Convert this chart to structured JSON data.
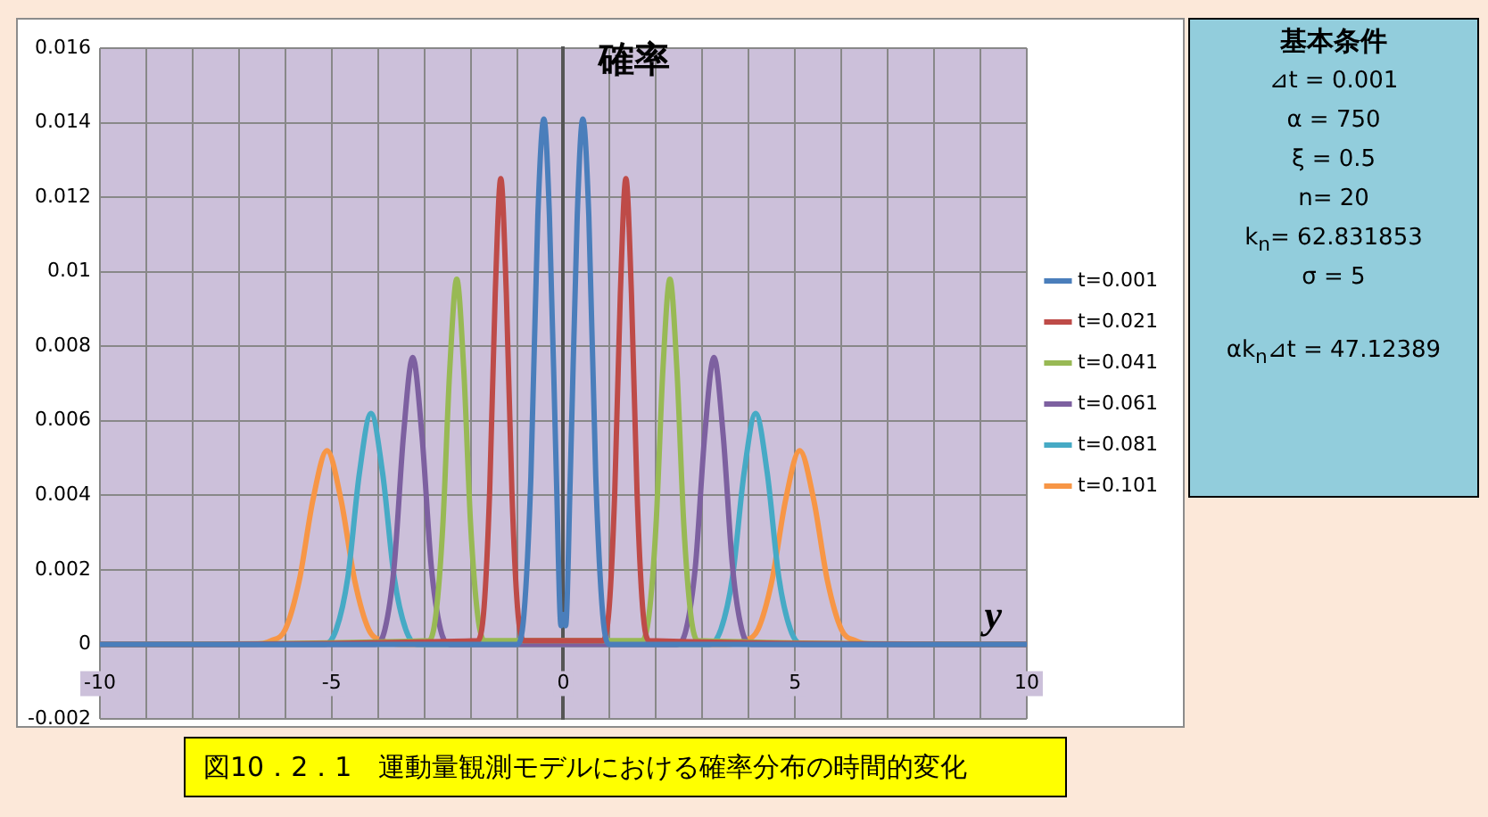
{
  "chart_data": {
    "type": "line",
    "title": "図10．2．1　運動量観測モデルにおける確率分布の時間的変化",
    "xlabel": "y",
    "ylabel": "確率",
    "annotations": [
      "基本条件",
      "⊿t = 0.001",
      "α = 750",
      "ξ = 0.5",
      "n= 20",
      "k$_{n}$= 62.831853",
      "σ = 5",
      "αk$_{n}$⊿t = 47.12389"
    ],
    "xlim": [
      -10,
      10
    ],
    "xticks": [
      -10,
      {
        "value": -9,
        "label": null
      },
      {
        "value": -8,
        "label": null
      },
      {
        "value": -7,
        "label": null
      },
      {
        "value": -6,
        "label": null
      },
      -5,
      {
        "value": -4,
        "label": null
      },
      {
        "value": -3,
        "label": null
      },
      {
        "value": -2,
        "label": null
      },
      {
        "value": -1,
        "label": null
      },
      0,
      {
        "value": 1,
        "label": null
      },
      {
        "value": 2,
        "label": null
      },
      {
        "value": 3,
        "label": null
      },
      {
        "value": 4,
        "label": null
      },
      5,
      {
        "value": 6,
        "label": null
      },
      {
        "value": 7,
        "label": null
      },
      {
        "value": 8,
        "label": null
      },
      {
        "value": 9,
        "label": null
      },
      10
    ],
    "ylim": [
      -0.002,
      0.016
    ],
    "yticks": [
      -0.002,
      0,
      0.002,
      0.004,
      0.006,
      0.008,
      0.01,
      0.012,
      0.014,
      0.016
    ],
    "grid": true,
    "legend": "right",
    "marker": "none",
    "line_style": "solid",
    "series": [
      {
        "name": "t=0.001",
        "color": "#4a7ebb",
        "x": [
          -10,
          -1.0,
          -0.85,
          -0.7,
          -0.55,
          -0.42,
          -0.3,
          -0.15,
          -0.05,
          0,
          0.05,
          0.15,
          0.3,
          0.42,
          0.55,
          0.7,
          0.85,
          1.0,
          10
        ],
        "values": [
          0,
          0,
          0.0008,
          0.0045,
          0.0115,
          0.0141,
          0.0115,
          0.0045,
          0.0005,
          0.0008,
          0.0005,
          0.0045,
          0.0115,
          0.0141,
          0.0115,
          0.0045,
          0.0008,
          0,
          0
        ]
      },
      {
        "name": "t=0.021",
        "color": "#be4b48",
        "x": [
          -10,
          -1.85,
          -1.71,
          -1.59,
          -1.47,
          -1.35,
          -1.23,
          -1.11,
          -0.99,
          -0.85,
          0.85,
          0.99,
          1.11,
          1.23,
          1.35,
          1.47,
          1.59,
          1.71,
          1.85,
          10
        ],
        "values": [
          0,
          0.0001,
          0.001,
          0.0041,
          0.0094,
          0.0125,
          0.0094,
          0.0041,
          0.001,
          0.0001,
          0.0001,
          0.001,
          0.0041,
          0.0094,
          0.0125,
          0.0094,
          0.0041,
          0.001,
          0.0001,
          0
        ]
      },
      {
        "name": "t=0.041",
        "color": "#98b954",
        "x": [
          -10,
          -2.9,
          -2.75,
          -2.6,
          -2.45,
          -2.3,
          -2.15,
          -2.0,
          -1.85,
          -1.7,
          1.7,
          1.85,
          2.0,
          2.15,
          2.3,
          2.45,
          2.6,
          2.75,
          2.9,
          10
        ],
        "values": [
          0,
          0.0001,
          0.0008,
          0.0032,
          0.0074,
          0.0098,
          0.0074,
          0.0032,
          0.0008,
          0.0001,
          0.0001,
          0.0008,
          0.0032,
          0.0074,
          0.0098,
          0.0074,
          0.0032,
          0.0008,
          0.0001,
          0
        ]
      },
      {
        "name": "t=0.061",
        "color": "#7d60a0",
        "x": [
          -10,
          -4.05,
          -3.85,
          -3.65,
          -3.45,
          -3.25,
          -3.05,
          -2.85,
          -2.65,
          -2.45,
          2.45,
          2.65,
          2.85,
          3.05,
          3.25,
          3.45,
          3.65,
          3.85,
          4.05,
          10
        ],
        "values": [
          0,
          0,
          0.0004,
          0.0021,
          0.0056,
          0.0077,
          0.0056,
          0.0021,
          0.0004,
          0,
          0,
          0.0004,
          0.0021,
          0.0056,
          0.0077,
          0.0056,
          0.0021,
          0.0004,
          0,
          0
        ]
      },
      {
        "name": "t=0.081",
        "color": "#46aac5",
        "x": [
          -10,
          -5.15,
          -4.9,
          -4.65,
          -4.4,
          -4.15,
          -3.9,
          -3.65,
          -3.4,
          -3.15,
          3.15,
          3.4,
          3.65,
          3.9,
          4.15,
          4.4,
          4.65,
          4.9,
          5.15,
          10
        ],
        "values": [
          0,
          0,
          0.0004,
          0.0018,
          0.0046,
          0.0062,
          0.0046,
          0.0018,
          0.0004,
          0,
          0,
          0.0004,
          0.0018,
          0.0046,
          0.0062,
          0.0046,
          0.0018,
          0.0004,
          0,
          0
        ]
      },
      {
        "name": "t=0.101",
        "color": "#f79646",
        "x": [
          -10,
          -6.7,
          -6.3,
          -6.0,
          -5.7,
          -5.4,
          -5.1,
          -4.8,
          -4.5,
          -4.2,
          -3.9,
          -3.5,
          3.5,
          3.9,
          4.2,
          4.5,
          4.8,
          5.1,
          5.4,
          5.7,
          6.0,
          6.3,
          6.7,
          10
        ],
        "values": [
          0,
          0,
          0.0001,
          0.0004,
          0.0017,
          0.0039,
          0.0052,
          0.0039,
          0.0017,
          0.0004,
          0.0001,
          0,
          0,
          0.0001,
          0.0004,
          0.0017,
          0.0039,
          0.0052,
          0.0039,
          0.0017,
          0.0004,
          0.0001,
          0,
          0
        ]
      }
    ]
  }
}
